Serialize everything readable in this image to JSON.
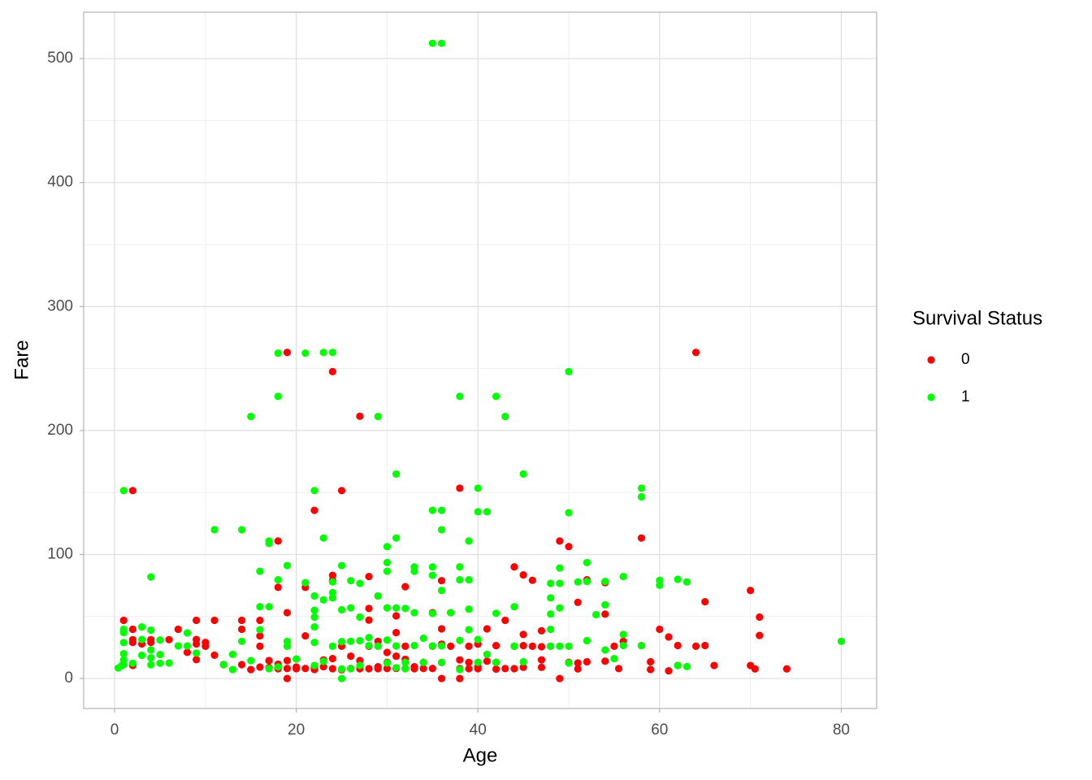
{
  "chart_data": {
    "type": "scatter",
    "x_label": "Age",
    "y_label": "Fare",
    "legend_title": "Survival Status",
    "legend": "right",
    "grid": true,
    "xlim": [
      -3.4,
      83.9
    ],
    "ylim": [
      -24.2,
      537.4
    ],
    "xticks": [
      0,
      20,
      40,
      60,
      80
    ],
    "yticks": [
      0,
      100,
      200,
      300,
      400,
      500
    ],
    "xminor": [
      10,
      30,
      50,
      70
    ],
    "yminor": [
      50,
      150,
      250,
      350,
      450
    ],
    "series": [
      {
        "name": "0",
        "color": "#ff0000",
        "x": [
          2,
          19,
          64,
          24,
          27,
          25,
          22,
          38,
          18,
          58,
          49,
          50,
          45,
          29,
          28,
          24,
          24,
          18,
          21,
          36,
          46,
          44,
          54,
          52,
          70,
          71,
          62,
          65,
          61,
          60,
          71,
          64,
          65,
          66,
          70,
          70.5,
          74,
          61,
          62,
          55.5,
          56,
          58,
          59,
          59,
          55,
          54,
          54,
          50,
          51,
          51,
          52,
          51,
          49,
          48,
          47,
          47,
          47,
          47,
          46,
          45,
          45,
          45,
          44,
          44,
          43,
          43,
          42,
          42,
          42,
          41,
          41,
          40,
          40,
          40,
          39,
          39,
          39,
          38,
          38,
          38,
          37,
          37,
          36,
          36,
          36,
          36,
          35,
          35,
          34,
          34,
          33,
          33,
          32,
          32,
          32,
          31,
          31,
          31,
          32,
          31,
          30,
          30,
          30,
          29,
          29,
          29,
          28,
          28,
          28,
          28,
          27,
          27,
          26,
          26,
          25,
          25,
          24,
          24,
          23,
          23,
          22,
          22,
          21,
          21,
          20,
          20,
          19,
          19,
          19,
          19,
          18,
          18,
          17,
          17,
          16,
          16,
          16,
          16,
          15,
          14,
          14,
          14,
          12,
          11,
          11,
          10,
          9,
          9,
          9,
          8,
          7,
          6,
          4,
          3,
          2,
          2,
          2,
          2,
          1,
          4,
          9,
          10,
          35
        ],
        "values": [
          151.55,
          263,
          263,
          247.5,
          211.5,
          151.55,
          135.6,
          153.5,
          110.9,
          113.3,
          110.9,
          106.4,
          83.5,
          66.6,
          82.2,
          79.2,
          83.2,
          73.5,
          73.5,
          78.9,
          79.2,
          90,
          77.3,
          79.6,
          71,
          49.5,
          26.6,
          61.9,
          33.5,
          39.7,
          34.7,
          26,
          26.6,
          10.5,
          10.5,
          7.75,
          7.75,
          6.2,
          10.5,
          8,
          30,
          26.5,
          7.25,
          13.5,
          26,
          14,
          51.9,
          13,
          7.75,
          12.5,
          13.5,
          61.4,
          0,
          26,
          38.5,
          25.6,
          15,
          9,
          26,
          35.5,
          26.5,
          9,
          26,
          7.9,
          46.9,
          8,
          26.5,
          13,
          7.55,
          40,
          14,
          27.7,
          9.5,
          7.9,
          26,
          13,
          7.9,
          0,
          7.9,
          15,
          53.1,
          26,
          40,
          27.7,
          12.9,
          0,
          26,
          8.05,
          13,
          8.05,
          9.5,
          7.9,
          26,
          8.05,
          15.5,
          37,
          50.5,
          18,
          74,
          8.1,
          21,
          8.05,
          13,
          30,
          9.5,
          7.9,
          56.5,
          47.1,
          26,
          7.9,
          14.5,
          7.9,
          8.05,
          18,
          26,
          7.05,
          16,
          7.9,
          15,
          9.5,
          7.25,
          9,
          34.4,
          8.05,
          9.2,
          7.9,
          53.1,
          14.5,
          0,
          8.05,
          11.5,
          7.8,
          14.5,
          8.7,
          46.9,
          26,
          9.2,
          34.4,
          7.2,
          46.9,
          39.7,
          11.2,
          11.2,
          46.9,
          18.8,
          29.1,
          46.9,
          31.4,
          27.9,
          21.1,
          39.7,
          31.3,
          31.3,
          27.9,
          39.7,
          31.3,
          29.1,
          10.5,
          46.9,
          29.1,
          15.2,
          26,
          53.1
        ]
      },
      {
        "name": "1",
        "color": "#00ff00",
        "x": [
          35,
          36,
          18,
          21,
          23,
          24,
          50,
          18,
          38,
          42,
          15,
          29,
          43,
          1,
          22,
          40,
          58,
          58,
          31,
          45,
          35,
          36,
          40,
          41,
          50,
          11,
          14,
          36,
          17,
          17,
          23,
          31,
          39,
          30,
          4,
          16,
          19,
          25,
          30,
          33,
          35,
          38,
          49,
          52,
          33,
          35,
          21,
          24,
          26,
          27,
          30,
          38,
          39,
          48,
          49,
          51,
          52,
          54,
          56,
          60,
          60,
          62,
          63,
          18,
          22,
          23,
          24,
          24,
          29,
          31,
          32,
          30,
          22,
          25,
          26,
          16,
          17,
          33,
          35,
          36,
          37,
          39,
          42,
          44,
          48,
          48,
          49,
          53,
          54,
          22,
          27,
          1,
          1,
          3,
          4,
          5,
          8,
          16,
          22,
          26,
          28,
          30,
          34,
          38,
          39,
          40,
          48,
          56,
          80,
          1,
          1,
          1,
          1,
          0.4,
          0.8,
          2,
          3,
          3,
          4,
          4,
          4,
          5,
          5,
          6,
          7,
          8,
          9,
          13,
          13,
          12,
          14,
          15,
          17,
          18,
          19,
          19,
          20,
          22,
          22,
          23,
          24,
          25,
          25,
          25,
          26,
          27,
          27,
          28,
          29,
          30,
          31,
          32,
          33,
          34,
          35,
          36,
          38,
          40,
          41,
          42,
          44,
          45,
          48,
          49,
          50,
          52,
          54,
          55,
          56,
          58,
          62,
          63,
          50,
          36,
          32,
          31
        ],
        "values": [
          512.3,
          512.3,
          262.4,
          262.4,
          263,
          263,
          247.5,
          227.5,
          227.5,
          227.5,
          211.3,
          211.3,
          211.3,
          151.55,
          151.55,
          153.5,
          153.5,
          146.5,
          164.9,
          164.9,
          135.6,
          135.6,
          134.5,
          134.5,
          133.7,
          120,
          120,
          120,
          110.9,
          108.9,
          113.3,
          113.3,
          110.9,
          106.4,
          81.9,
          86.5,
          91.1,
          91.1,
          93.5,
          90,
          90,
          90,
          89.1,
          93.5,
          86.5,
          83.2,
          77.3,
          77.9,
          78.9,
          76.7,
          86.5,
          79.6,
          79.6,
          76.7,
          76.7,
          77.9,
          78.3,
          78.3,
          82.2,
          79.2,
          75.2,
          80,
          77.9,
          79.6,
          66.6,
          63.4,
          65,
          69.3,
          66.6,
          56.9,
          56.5,
          57,
          55,
          55.4,
          57,
          57.9,
          57.9,
          53.1,
          52.5,
          71,
          53.1,
          55.9,
          52.6,
          57.9,
          52,
          65,
          56.9,
          51.5,
          59.4,
          49.5,
          49.5,
          39.7,
          37,
          41.6,
          39,
          31,
          36.75,
          39.4,
          41.6,
          30,
          33,
          31,
          32.5,
          30.7,
          39.4,
          31.4,
          39.6,
          35.5,
          30,
          29,
          20,
          15,
          11.1,
          8.5,
          10.5,
          12.3,
          18.75,
          31.4,
          23,
          16.7,
          11.1,
          19.3,
          12.3,
          12.5,
          26.3,
          26.25,
          20.5,
          19.5,
          7.2,
          11.25,
          30,
          14.4,
          7.9,
          9.35,
          26,
          30,
          15.7,
          10.5,
          29.1,
          13.8,
          26,
          0,
          7.65,
          29.7,
          7.9,
          10.5,
          30.5,
          26.55,
          26,
          12.5,
          26.25,
          7.9,
          26.55,
          13,
          26.3,
          13,
          7.2,
          13,
          19.5,
          13,
          26,
          13.5,
          26,
          26,
          26,
          30.5,
          23,
          16,
          26.55,
          26.55,
          10.5,
          9.6,
          12.5,
          26.3,
          13,
          8.7
        ]
      }
    ]
  }
}
